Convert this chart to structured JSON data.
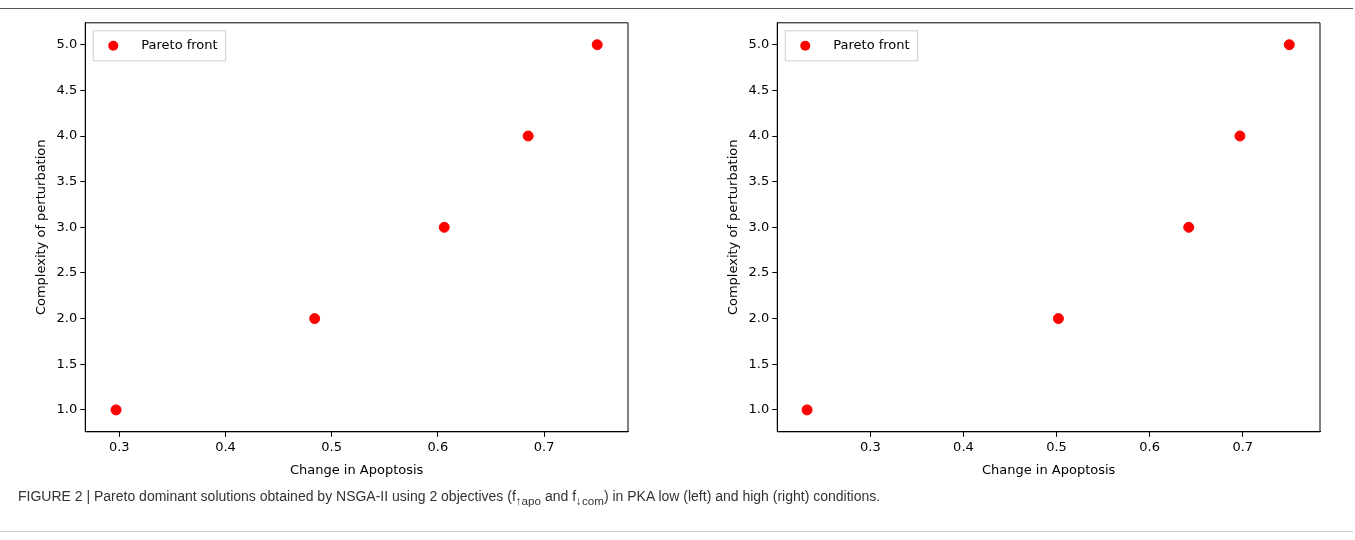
{
  "chart_data": [
    {
      "type": "scatter",
      "xlabel": "Change in Apoptosis",
      "ylabel": "Complexity of perturbation",
      "series": [
        {
          "name": "Pareto front",
          "color": "#ff0000",
          "x": [
            0.297,
            0.484,
            0.606,
            0.685,
            0.75
          ],
          "values": [
            1,
            2,
            3,
            4,
            5
          ]
        }
      ],
      "xlim": [
        0.268,
        0.779
      ],
      "xticks": [
        0.3,
        0.4,
        0.5,
        0.6,
        0.7
      ],
      "ylim": [
        0.76,
        5.24
      ],
      "yticks": [
        {
          "value": 1,
          "label": "1.0"
        },
        {
          "value": 1.5,
          "label": "1.5"
        },
        {
          "value": 2,
          "label": "2.0"
        },
        {
          "value": 2.5,
          "label": "2.5"
        },
        {
          "value": 3,
          "label": "3.0"
        },
        {
          "value": 3.5,
          "label": "3.5"
        },
        {
          "value": 4,
          "label": "4.0"
        },
        {
          "value": 4.5,
          "label": "4.5"
        },
        {
          "value": 5,
          "label": "5.0"
        }
      ],
      "legend": "top left",
      "marker": "circle",
      "grid": false,
      "annotations": [
        "FIGURE 2 | Pareto dominant solutions obtained by NSGA-II using 2 objectives (f$_{↑apo}$ and f$_{↓com}$) in PKA low (left) and high (right) conditions."
      ]
    },
    {
      "type": "scatter",
      "xlabel": "Change in Apoptosis",
      "ylabel": "Complexity of perturbation",
      "series": [
        {
          "name": "Pareto front",
          "color": "#ff0000",
          "x": [
            0.232,
            0.502,
            0.642,
            0.697,
            0.75
          ],
          "values": [
            1,
            2,
            3,
            4,
            5
          ]
        }
      ],
      "xlim": [
        0.2,
        0.783
      ],
      "xticks": [
        0.3,
        0.4,
        0.5,
        0.6,
        0.7
      ],
      "ylim": [
        0.76,
        5.24
      ],
      "yticks": [
        {
          "value": 1,
          "label": "1.0"
        },
        {
          "value": 1.5,
          "label": "1.5"
        },
        {
          "value": 2,
          "label": "2.0"
        },
        {
          "value": 2.5,
          "label": "2.5"
        },
        {
          "value": 3,
          "label": "3.0"
        },
        {
          "value": 3.5,
          "label": "3.5"
        },
        {
          "value": 4,
          "label": "4.0"
        },
        {
          "value": 4.5,
          "label": "4.5"
        },
        {
          "value": 5,
          "label": "5.0"
        }
      ],
      "legend": "top left",
      "marker": "circle",
      "grid": false
    }
  ]
}
